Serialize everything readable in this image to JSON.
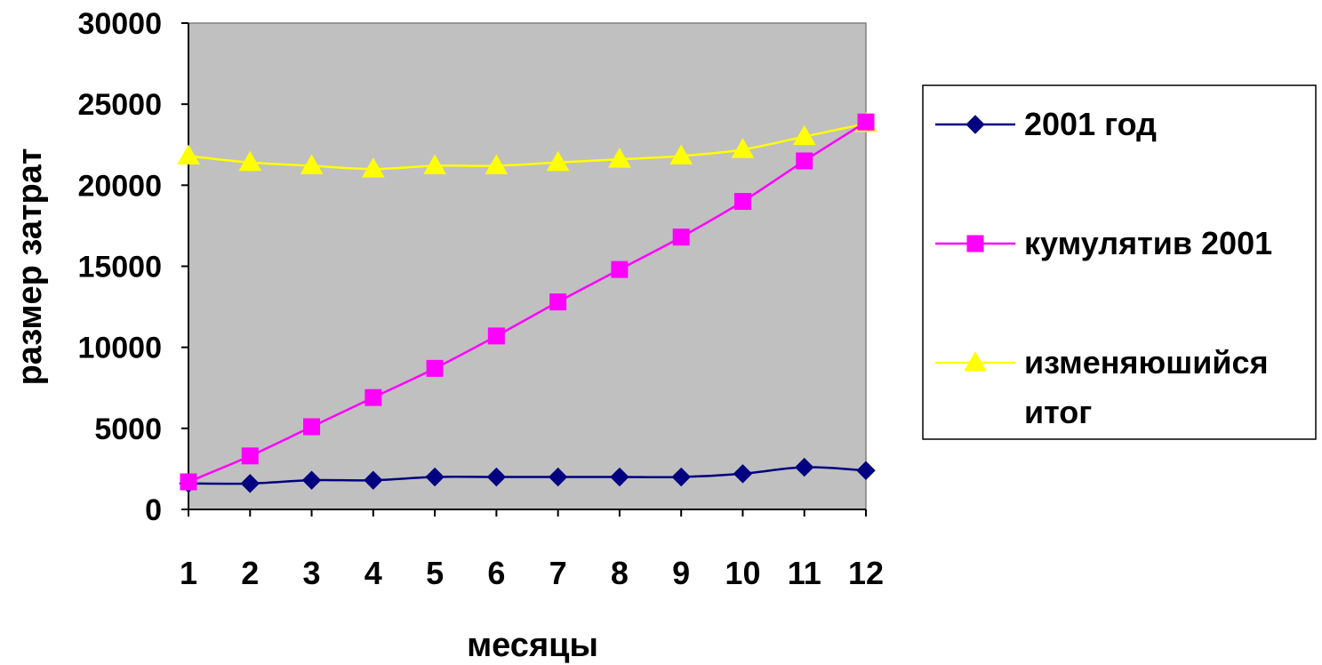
{
  "chart_data": {
    "type": "line",
    "xlabel": "месяцы",
    "ylabel": "размер затрат",
    "categories": [
      "1",
      "2",
      "3",
      "4",
      "5",
      "6",
      "7",
      "8",
      "9",
      "10",
      "11",
      "12"
    ],
    "ylim": [
      0,
      30000
    ],
    "yticks": [
      "0",
      "5000",
      "10000",
      "15000",
      "20000",
      "25000",
      "30000"
    ],
    "grid": false,
    "legend_position": "right",
    "plot_background": "#c0c0c0",
    "series": [
      {
        "name": "2001 год",
        "color": "#000080",
        "marker": "diamond",
        "values": [
          1600,
          1600,
          1800,
          1800,
          2000,
          2000,
          2000,
          2000,
          2000,
          2200,
          2600,
          2400
        ]
      },
      {
        "name": "кумулятив 2001",
        "color": "#ff00ff",
        "marker": "square",
        "values": [
          1700,
          3300,
          5100,
          6900,
          8700,
          10700,
          12800,
          14800,
          16800,
          19000,
          21500,
          23900
        ]
      },
      {
        "name": "изменяюшийся итог",
        "legend_lines": [
          "изменяюшийся",
          "итог"
        ],
        "color": "#ffff00",
        "marker": "triangle",
        "values": [
          21800,
          21400,
          21200,
          21000,
          21200,
          21200,
          21400,
          21600,
          21800,
          22200,
          23000,
          23800
        ]
      }
    ]
  }
}
